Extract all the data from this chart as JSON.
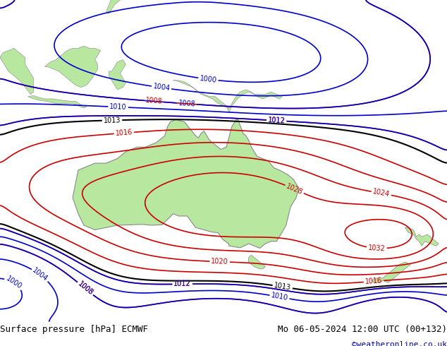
{
  "title_left": "Surface pressure [hPa] ECMWF",
  "title_right": "Mo 06-05-2024 12:00 UTC (00+132)",
  "copyright": "©weatheronline.co.uk",
  "bg_color": "#d8e8f0",
  "land_color": "#b8e8a0",
  "land_edge_color": "#888888",
  "isobar_red_color": "#cc0000",
  "isobar_blue_color": "#0000cc",
  "isobar_black_color": "#000000",
  "label_color_red": "#cc0000",
  "label_color_blue": "#0000cc",
  "label_color_black": "#000000",
  "title_fontsize": 9,
  "copyright_color": "#0000aa",
  "map_xlim": [
    100,
    180
  ],
  "map_ylim": [
    -55,
    15
  ],
  "figsize": [
    6.34,
    4.9
  ],
  "dpi": 100
}
